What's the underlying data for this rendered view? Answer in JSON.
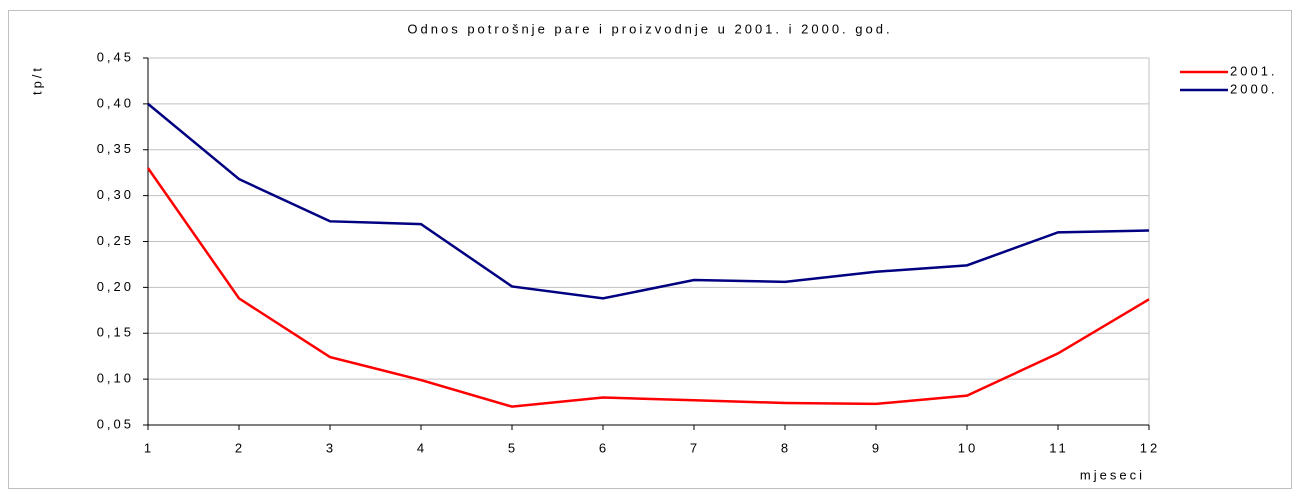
{
  "chart_data": {
    "type": "line",
    "title": "Odnos potrošnje pare i proizvodnje u 2001. i 2000. god.",
    "y_label": "tp/t",
    "x_label": "mjeseci",
    "x": [
      1,
      2,
      3,
      4,
      5,
      6,
      7,
      8,
      9,
      10,
      11,
      12
    ],
    "xlim": [
      1,
      12
    ],
    "xticks": [
      1,
      2,
      3,
      4,
      5,
      6,
      7,
      8,
      9,
      10,
      11,
      12
    ],
    "ylim": [
      0.05,
      0.45
    ],
    "yticks": [
      {
        "value": 0.05,
        "label": "0,05"
      },
      {
        "value": 0.1,
        "label": "0,10"
      },
      {
        "value": 0.15,
        "label": "0,15"
      },
      {
        "value": 0.2,
        "label": "0,20"
      },
      {
        "value": 0.25,
        "label": "0,25"
      },
      {
        "value": 0.3,
        "label": "0,30"
      },
      {
        "value": 0.35,
        "label": "0,35"
      },
      {
        "value": 0.4,
        "label": "0,40"
      },
      {
        "value": 0.45,
        "label": "0,45"
      }
    ],
    "grid": true,
    "legend": "right",
    "series": [
      {
        "name": "2001.",
        "color": "#ff0000",
        "values": [
          0.33,
          0.188,
          0.124,
          0.099,
          0.07,
          0.08,
          0.077,
          0.074,
          0.073,
          0.082,
          0.128,
          0.187
        ]
      },
      {
        "name": "2000.",
        "color": "#000080",
        "values": [
          0.4,
          0.318,
          0.272,
          0.269,
          0.201,
          0.188,
          0.208,
          0.206,
          0.217,
          0.224,
          0.26,
          0.262
        ]
      }
    ]
  }
}
